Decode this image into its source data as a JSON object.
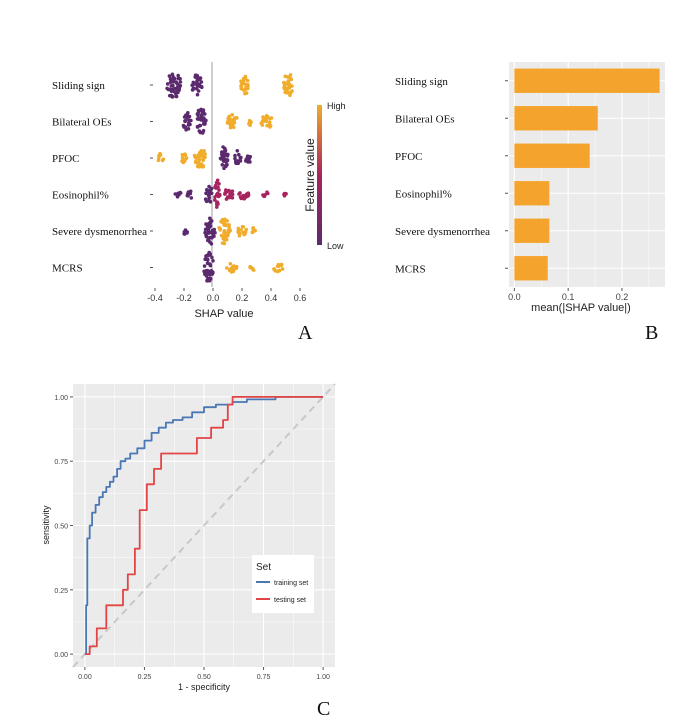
{
  "chart_data": [
    {
      "id": "A",
      "panel_label": "A",
      "type": "scatter",
      "subtype": "shap-beeswarm",
      "xlabel": "SHAP value",
      "xticks": [
        "-0.4",
        "-0.2",
        "0.0",
        "0.2",
        "0.4",
        "0.6"
      ],
      "xlim": [
        -0.4,
        0.6
      ],
      "features": [
        "Sliding sign",
        "Bilateral OEs",
        "PFOC",
        "Eosinophil%",
        "Severe dysmenorrhea",
        "MCRS"
      ],
      "legend": {
        "title": "Feature value",
        "high": "High",
        "low": "Low"
      },
      "colors": {
        "low": "#5b2a6e",
        "mid": "#a8245e",
        "high": "#f0ac2b",
        "zero_line": "#9e9e9e",
        "panel_bg": "#ffffff"
      },
      "clusters": [
        [
          {
            "x": -0.27,
            "w": 0.1,
            "h": 0.9,
            "v": "low"
          },
          {
            "x": -0.11,
            "w": 0.07,
            "h": 0.7,
            "v": "low"
          },
          {
            "x": 0.22,
            "w": 0.06,
            "h": 0.6,
            "v": "high"
          },
          {
            "x": 0.52,
            "w": 0.07,
            "h": 0.8,
            "v": "high"
          }
        ],
        [
          {
            "x": -0.18,
            "w": 0.06,
            "h": 0.6,
            "v": "low"
          },
          {
            "x": -0.08,
            "w": 0.07,
            "h": 0.9,
            "v": "low"
          },
          {
            "x": 0.13,
            "w": 0.09,
            "h": 0.45,
            "v": "high"
          },
          {
            "x": 0.37,
            "w": 0.08,
            "h": 0.45,
            "v": "high"
          },
          {
            "x": 0.25,
            "w": 0.03,
            "h": 0.3,
            "v": "high"
          }
        ],
        [
          {
            "x": -0.36,
            "w": 0.04,
            "h": 0.3,
            "v": "high"
          },
          {
            "x": -0.2,
            "w": 0.05,
            "h": 0.35,
            "v": "high"
          },
          {
            "x": -0.09,
            "w": 0.08,
            "h": 0.75,
            "v": "high"
          },
          {
            "x": 0.08,
            "w": 0.06,
            "h": 0.8,
            "v": "low"
          },
          {
            "x": 0.17,
            "w": 0.05,
            "h": 0.5,
            "v": "low"
          },
          {
            "x": 0.24,
            "w": 0.04,
            "h": 0.4,
            "v": "low"
          }
        ],
        [
          {
            "x": -0.24,
            "w": 0.04,
            "h": 0.2,
            "v": "low"
          },
          {
            "x": -0.16,
            "w": 0.04,
            "h": 0.3,
            "v": "low"
          },
          {
            "x": -0.03,
            "w": 0.06,
            "h": 0.55,
            "v": "low"
          },
          {
            "x": 0.03,
            "w": 0.04,
            "h": 1.0,
            "v": "mid"
          },
          {
            "x": 0.11,
            "w": 0.08,
            "h": 0.35,
            "v": "mid"
          },
          {
            "x": 0.21,
            "w": 0.08,
            "h": 0.3,
            "v": "mid"
          },
          {
            "x": 0.36,
            "w": 0.05,
            "h": 0.2,
            "v": "mid"
          },
          {
            "x": 0.5,
            "w": 0.03,
            "h": 0.15,
            "v": "mid"
          }
        ],
        [
          {
            "x": -0.19,
            "w": 0.03,
            "h": 0.3,
            "v": "low"
          },
          {
            "x": -0.02,
            "w": 0.07,
            "h": 0.9,
            "v": "low"
          },
          {
            "x": 0.08,
            "w": 0.08,
            "h": 0.9,
            "v": "high"
          },
          {
            "x": 0.2,
            "w": 0.06,
            "h": 0.4,
            "v": "high"
          },
          {
            "x": 0.28,
            "w": 0.02,
            "h": 0.25,
            "v": "high"
          }
        ],
        [
          {
            "x": -0.03,
            "w": 0.07,
            "h": 1.0,
            "v": "low"
          },
          {
            "x": 0.13,
            "w": 0.08,
            "h": 0.3,
            "v": "high"
          },
          {
            "x": 0.27,
            "w": 0.03,
            "h": 0.25,
            "v": "high"
          },
          {
            "x": 0.45,
            "w": 0.07,
            "h": 0.3,
            "v": "high"
          }
        ]
      ]
    },
    {
      "id": "B",
      "panel_label": "B",
      "type": "bar",
      "orientation": "horizontal",
      "categories": [
        "Sliding sign",
        "Bilateral OEs",
        "PFOC",
        "Eosinophil%",
        "Severe dysmenorrhea",
        "MCRS"
      ],
      "values": [
        0.27,
        0.155,
        0.14,
        0.065,
        0.065,
        0.062
      ],
      "xlabel": "mean(|SHAP value|)",
      "xticks": [
        "0.0",
        "0.1",
        "0.2"
      ],
      "xlim": [
        -0.01,
        0.28
      ],
      "colors": {
        "bar": "#f4a32c",
        "panel_bg": "#ebebeb",
        "grid": "#ffffff"
      }
    },
    {
      "id": "C",
      "panel_label": "C",
      "type": "line",
      "subtype": "roc",
      "xlabel": "1 - specificity",
      "ylabel": "sensitivity",
      "xticks": [
        "0.00",
        "0.25",
        "0.50",
        "0.75",
        "1.00"
      ],
      "yticks": [
        "0.00",
        "0.25",
        "0.50",
        "0.75",
        "1.00"
      ],
      "xlim": [
        -0.05,
        1.05
      ],
      "ylim": [
        -0.05,
        1.05
      ],
      "legend": {
        "title": "Set",
        "position": "right"
      },
      "colors": {
        "panel_bg": "#ebebeb",
        "grid": "#ffffff",
        "diagonal": "#c8c8c8"
      },
      "series": [
        {
          "name": "training set",
          "color": "#4a78b5",
          "x": [
            0,
            0.005,
            0.005,
            0.01,
            0.01,
            0.02,
            0.02,
            0.03,
            0.03,
            0.045,
            0.045,
            0.06,
            0.06,
            0.075,
            0.075,
            0.09,
            0.09,
            0.105,
            0.105,
            0.12,
            0.12,
            0.135,
            0.135,
            0.15,
            0.15,
            0.17,
            0.17,
            0.19,
            0.19,
            0.22,
            0.22,
            0.25,
            0.25,
            0.28,
            0.28,
            0.31,
            0.31,
            0.34,
            0.34,
            0.37,
            0.37,
            0.41,
            0.41,
            0.45,
            0.45,
            0.5,
            0.5,
            0.55,
            0.55,
            0.62,
            0.62,
            0.68,
            0.68,
            0.8,
            0.8,
            1.0
          ],
          "y": [
            0,
            0,
            0.19,
            0.19,
            0.45,
            0.45,
            0.5,
            0.5,
            0.55,
            0.55,
            0.58,
            0.58,
            0.61,
            0.61,
            0.63,
            0.63,
            0.65,
            0.65,
            0.67,
            0.67,
            0.69,
            0.69,
            0.72,
            0.72,
            0.75,
            0.75,
            0.76,
            0.76,
            0.78,
            0.78,
            0.8,
            0.8,
            0.83,
            0.83,
            0.86,
            0.86,
            0.88,
            0.88,
            0.9,
            0.9,
            0.91,
            0.91,
            0.92,
            0.92,
            0.94,
            0.94,
            0.96,
            0.96,
            0.97,
            0.97,
            0.98,
            0.98,
            0.99,
            0.99,
            1.0,
            1.0
          ]
        },
        {
          "name": "testing set",
          "color": "#e24545",
          "x": [
            0,
            0.02,
            0.02,
            0.05,
            0.05,
            0.09,
            0.09,
            0.16,
            0.16,
            0.18,
            0.18,
            0.21,
            0.21,
            0.23,
            0.23,
            0.26,
            0.26,
            0.29,
            0.29,
            0.32,
            0.32,
            0.47,
            0.47,
            0.53,
            0.53,
            0.58,
            0.58,
            0.6,
            0.6,
            0.62,
            0.62,
            1.0
          ],
          "y": [
            0,
            0,
            0.03,
            0.03,
            0.1,
            0.1,
            0.19,
            0.19,
            0.25,
            0.25,
            0.31,
            0.31,
            0.41,
            0.41,
            0.56,
            0.56,
            0.66,
            0.66,
            0.72,
            0.72,
            0.78,
            0.78,
            0.84,
            0.84,
            0.88,
            0.88,
            0.91,
            0.91,
            0.97,
            0.97,
            1.0,
            1.0
          ]
        }
      ]
    }
  ]
}
